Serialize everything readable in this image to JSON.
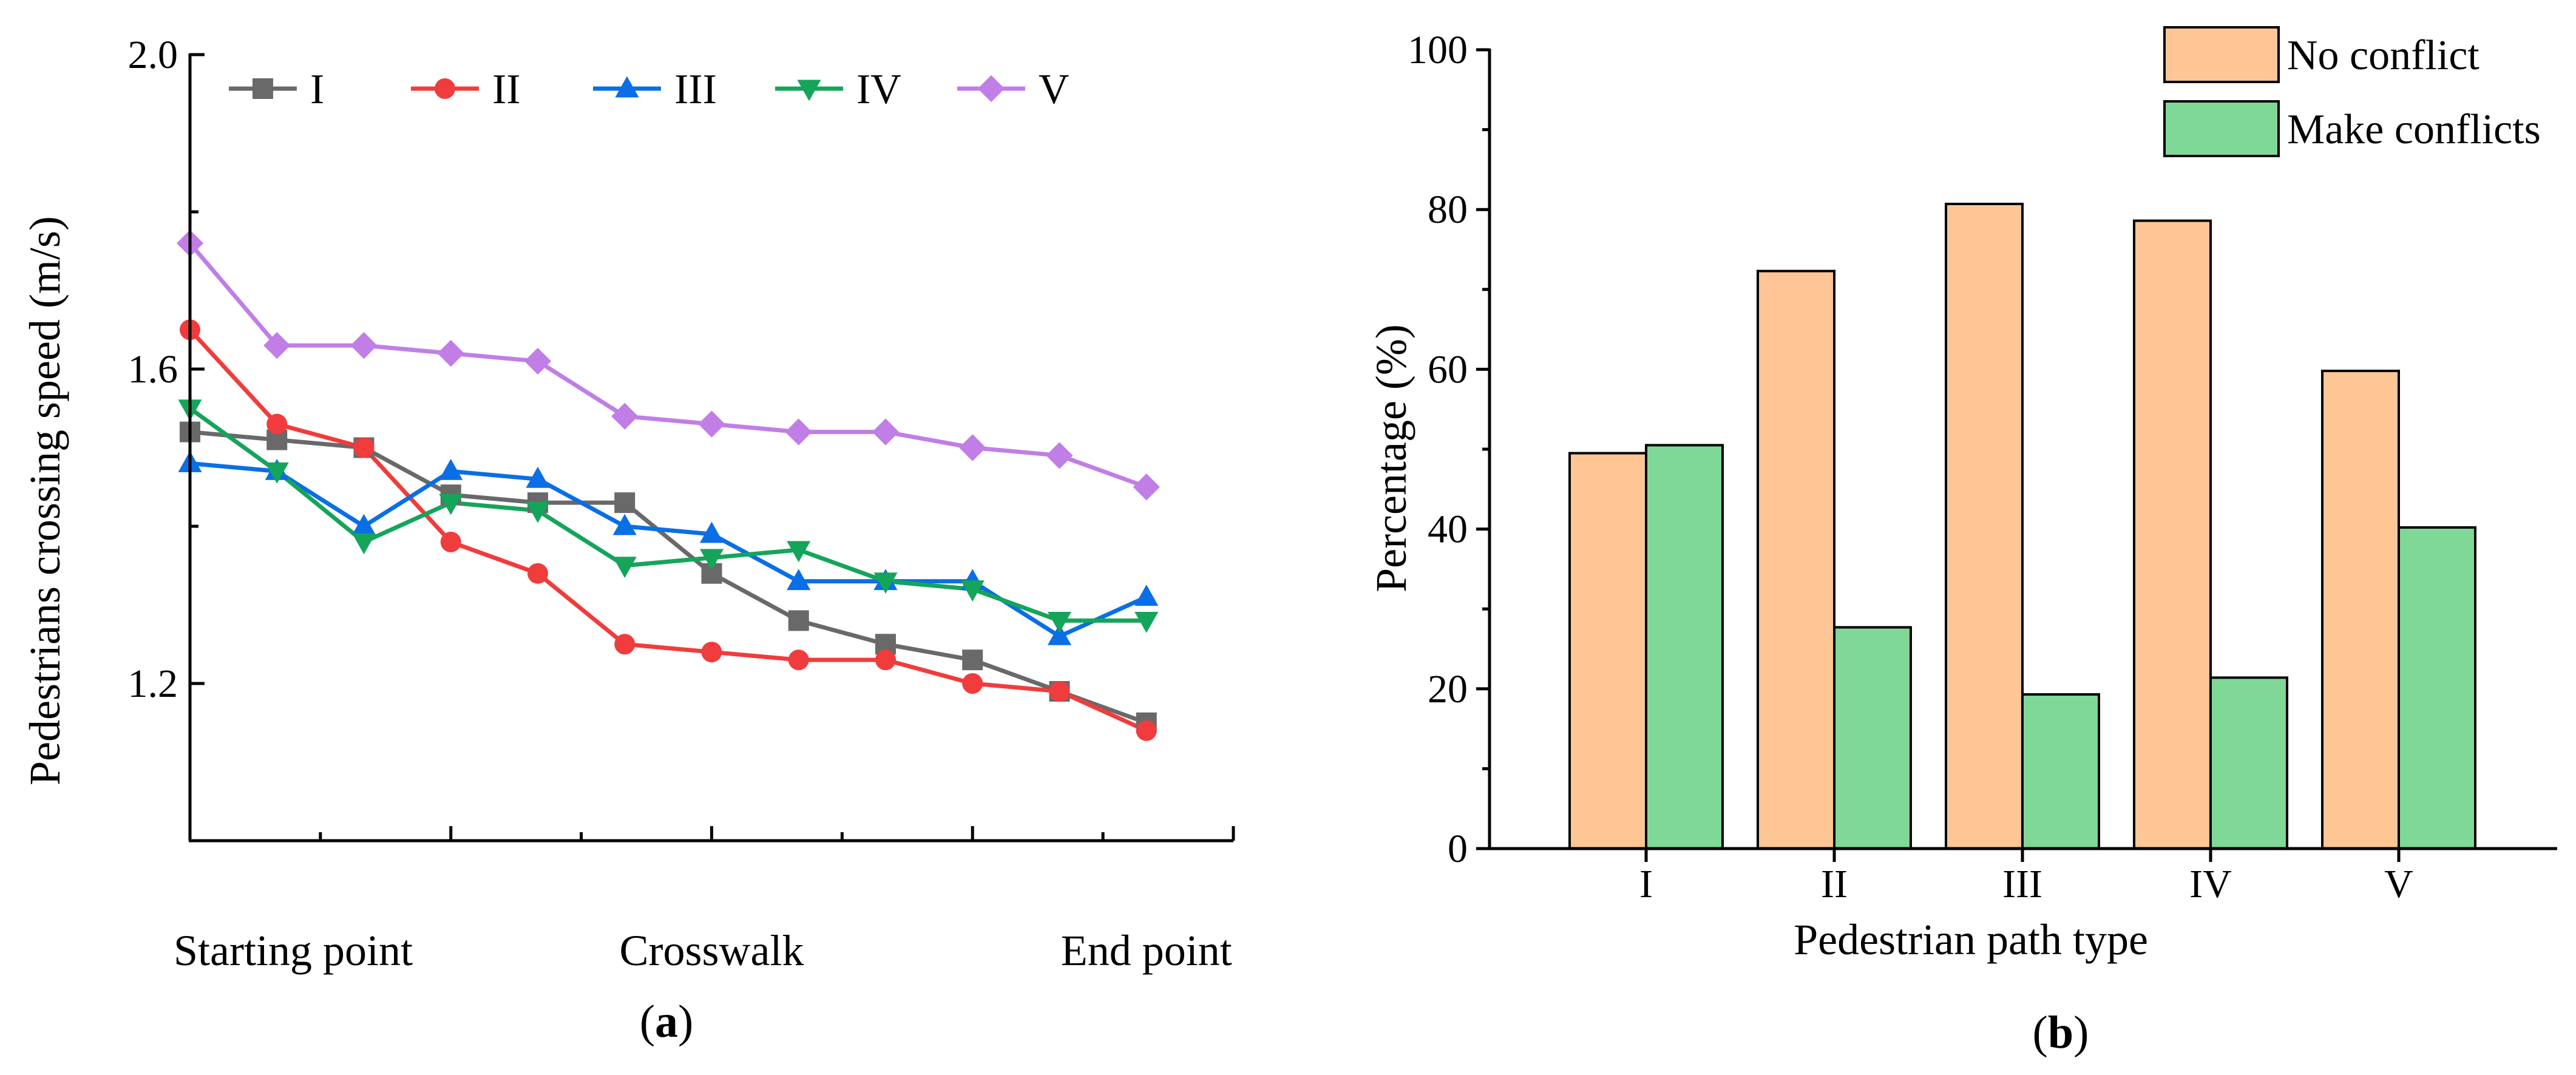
{
  "chart_data": [
    {
      "type": "line",
      "panel_label": "a",
      "title": "",
      "xlabel": "",
      "ylabel": "Pedestrians crossing speed (m/s)",
      "ylim": [
        1.0,
        2.0
      ],
      "yticks": [
        1.2,
        1.6,
        2.0
      ],
      "yticks_display": [
        "1.2",
        "1.6",
        "2.0"
      ],
      "xlim": [
        0,
        12
      ],
      "x": [
        0,
        1,
        2,
        3,
        4,
        5,
        6,
        7,
        8,
        9,
        10,
        11
      ],
      "x_landmarks": [
        {
          "x": 0,
          "label": "Starting point"
        },
        {
          "x": 6,
          "label": "Crosswalk"
        },
        {
          "x": 11,
          "label": "End point"
        }
      ],
      "legend_position": "top",
      "series": [
        {
          "name": "I",
          "color": "#696969",
          "marker": "square",
          "values": [
            1.52,
            1.51,
            1.5,
            1.44,
            1.43,
            1.43,
            1.34,
            1.28,
            1.25,
            1.23,
            1.19,
            1.15
          ]
        },
        {
          "name": "II",
          "color": "#f03c3c",
          "marker": "circle",
          "values": [
            1.65,
            1.53,
            1.5,
            1.38,
            1.34,
            1.25,
            1.24,
            1.23,
            1.23,
            1.2,
            1.19,
            1.14
          ]
        },
        {
          "name": "III",
          "color": "#0a6ee6",
          "marker": "triangle-up",
          "values": [
            1.48,
            1.47,
            1.4,
            1.47,
            1.46,
            1.4,
            1.39,
            1.33,
            1.33,
            1.33,
            1.26,
            1.31
          ]
        },
        {
          "name": "IV",
          "color": "#14a55a",
          "marker": "triangle-down",
          "values": [
            1.55,
            1.47,
            1.38,
            1.43,
            1.42,
            1.35,
            1.36,
            1.37,
            1.33,
            1.32,
            1.28,
            1.28
          ]
        },
        {
          "name": "V",
          "color": "#c07ee6",
          "marker": "diamond",
          "values": [
            1.76,
            1.63,
            1.63,
            1.62,
            1.61,
            1.54,
            1.53,
            1.52,
            1.52,
            1.5,
            1.49,
            1.45
          ]
        }
      ]
    },
    {
      "type": "bar",
      "panel_label": "b",
      "title": "",
      "xlabel": "Pedestrian path type",
      "ylabel": "Percentage (%)",
      "ylim": [
        0,
        100
      ],
      "yticks": [
        0,
        20,
        40,
        60,
        80,
        100
      ],
      "categories": [
        "I",
        "II",
        "III",
        "IV",
        "V"
      ],
      "legend_position": "top-right",
      "series": [
        {
          "name": "No conflict",
          "color": "#fdc694",
          "values": [
            49.5,
            72.3,
            80.7,
            78.6,
            59.8
          ]
        },
        {
          "name": "Make conflicts",
          "color": "#7fd897",
          "values": [
            50.5,
            27.7,
            19.3,
            21.4,
            40.2
          ]
        }
      ]
    }
  ]
}
